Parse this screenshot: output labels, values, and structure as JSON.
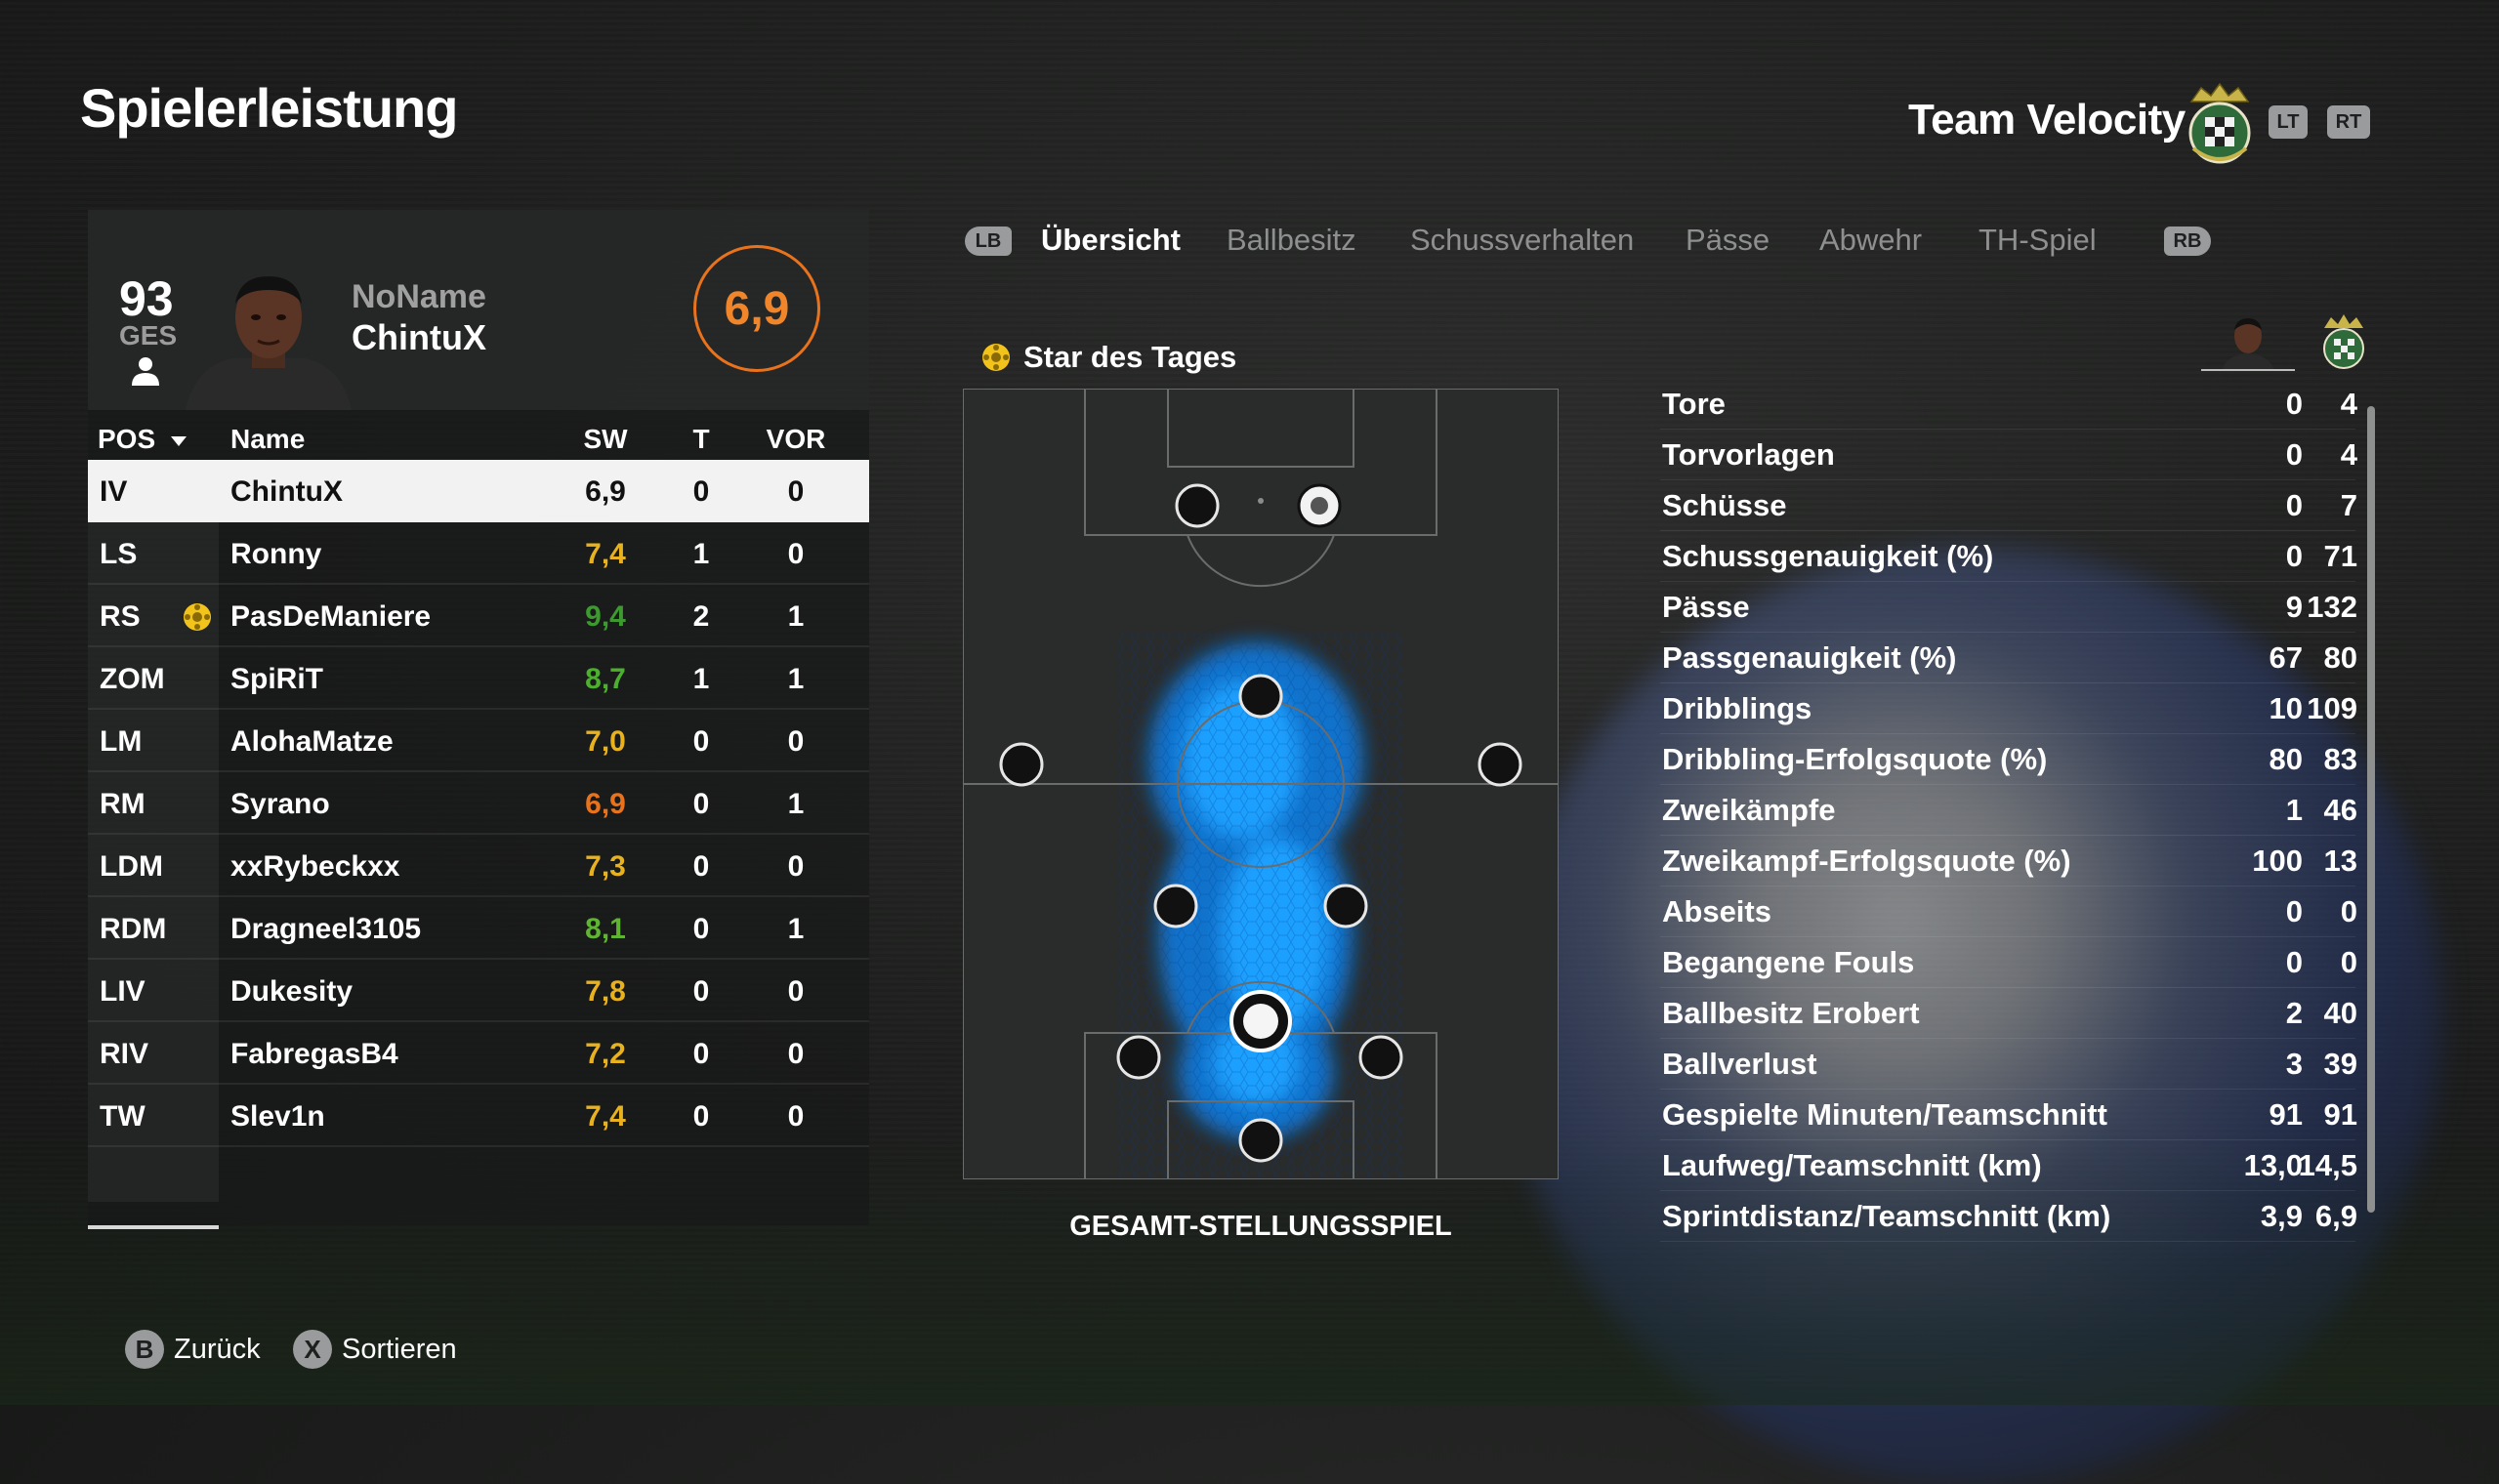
{
  "page": {
    "title": "Spielerleistung"
  },
  "team": {
    "name": "Team Velocity",
    "crest_icon": "team-crest-icon"
  },
  "buttons": {
    "lt": "LT",
    "rt": "RT",
    "lb": "LB",
    "rb": "RB"
  },
  "player": {
    "overall": "93",
    "overall_label": "GES",
    "first_name": "NoName",
    "last_name": "ChintuX",
    "rating": "6,9",
    "rating_color": "#e9731c"
  },
  "table": {
    "headers": {
      "pos": "POS",
      "name": "Name",
      "sw": "SW",
      "t": "T",
      "vor": "VOR"
    },
    "rows": [
      {
        "pos": "IV",
        "name": "ChintuX",
        "sw": "6,9",
        "t": "0",
        "vor": "0",
        "sw_color": "#111111"
      },
      {
        "pos": "LS",
        "name": "Ronny",
        "sw": "7,4",
        "t": "1",
        "vor": "0",
        "sw_color": "#e8b21f"
      },
      {
        "pos": "RS",
        "name": "PasDeManiere",
        "sw": "9,4",
        "t": "2",
        "vor": "1",
        "sw_color": "#3c9a2e"
      },
      {
        "pos": "ZOM",
        "name": "SpiRiT",
        "sw": "8,7",
        "t": "1",
        "vor": "1",
        "sw_color": "#4caf2e"
      },
      {
        "pos": "LM",
        "name": "AlohaMatze",
        "sw": "7,0",
        "t": "0",
        "vor": "0",
        "sw_color": "#e8b21f"
      },
      {
        "pos": "RM",
        "name": "Syrano",
        "sw": "6,9",
        "t": "0",
        "vor": "1",
        "sw_color": "#e9731c"
      },
      {
        "pos": "LDM",
        "name": "xxRybeckxx",
        "sw": "7,3",
        "t": "0",
        "vor": "0",
        "sw_color": "#e8b21f"
      },
      {
        "pos": "RDM",
        "name": "Dragneel3105",
        "sw": "8,1",
        "t": "0",
        "vor": "1",
        "sw_color": "#5fb531"
      },
      {
        "pos": "LIV",
        "name": "Dukesity",
        "sw": "7,8",
        "t": "0",
        "vor": "0",
        "sw_color": "#e8b21f"
      },
      {
        "pos": "RIV",
        "name": "FabregasB4",
        "sw": "7,2",
        "t": "0",
        "vor": "0",
        "sw_color": "#e8b21f"
      },
      {
        "pos": "TW",
        "name": "Slev1n",
        "sw": "7,4",
        "t": "0",
        "vor": "0",
        "sw_color": "#e8b21f"
      }
    ]
  },
  "tabs": [
    {
      "label": "Übersicht",
      "active": true
    },
    {
      "label": "Ballbesitz",
      "active": false
    },
    {
      "label": "Schussverhalten",
      "active": false
    },
    {
      "label": "Pässe",
      "active": false
    },
    {
      "label": "Abwehr",
      "active": false
    },
    {
      "label": "TH-Spiel",
      "active": false
    }
  ],
  "pitch": {
    "star_label": "Star des Tages",
    "caption": "GESAMT-STELLUNGSSPIEL",
    "heat_color": "#0a8bff"
  },
  "stats": [
    {
      "label": "Tore",
      "player": "0",
      "team": "4"
    },
    {
      "label": "Torvorlagen",
      "player": "0",
      "team": "4"
    },
    {
      "label": "Schüsse",
      "player": "0",
      "team": "7"
    },
    {
      "label": "Schussgenauigkeit (%)",
      "player": "0",
      "team": "71"
    },
    {
      "label": "Pässe",
      "player": "9",
      "team": "132"
    },
    {
      "label": "Passgenauigkeit (%)",
      "player": "67",
      "team": "80"
    },
    {
      "label": "Dribblings",
      "player": "10",
      "team": "109"
    },
    {
      "label": "Dribbling-Erfolgsquote (%)",
      "player": "80",
      "team": "83"
    },
    {
      "label": "Zweikämpfe",
      "player": "1",
      "team": "46"
    },
    {
      "label": "Zweikampf-Erfolgsquote (%)",
      "player": "100",
      "team": "13"
    },
    {
      "label": "Abseits",
      "player": "0",
      "team": "0"
    },
    {
      "label": "Begangene Fouls",
      "player": "0",
      "team": "0"
    },
    {
      "label": "Ballbesitz Erobert",
      "player": "2",
      "team": "40"
    },
    {
      "label": "Ballverlust",
      "player": "3",
      "team": "39"
    },
    {
      "label": "Gespielte Minuten/Teamschnitt",
      "player": "91",
      "team": "91"
    },
    {
      "label": "Laufweg/Teamschnitt (km)",
      "player": "13,0",
      "team": "14,5"
    },
    {
      "label": "Sprintdistanz/Teamschnitt (km)",
      "player": "3,9",
      "team": "6,9"
    }
  ],
  "footer": {
    "back": {
      "button": "B",
      "label": "Zurück"
    },
    "sort": {
      "button": "X",
      "label": "Sortieren"
    }
  }
}
